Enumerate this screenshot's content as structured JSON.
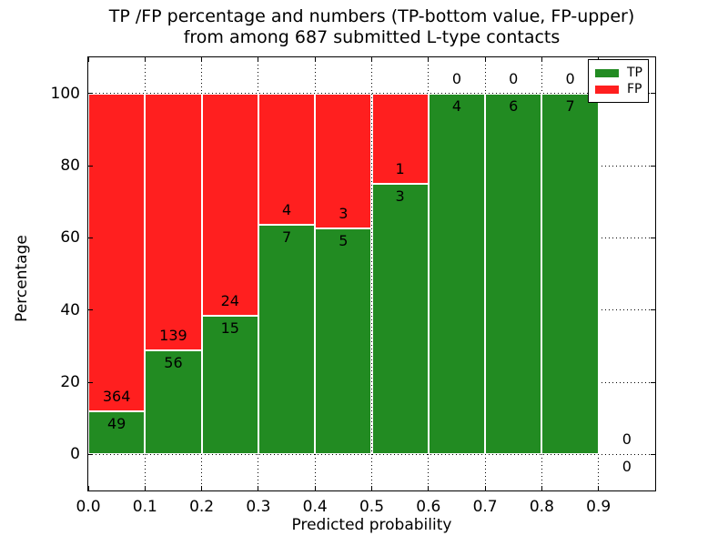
{
  "chart_data": {
    "type": "bar",
    "stacked_percentage": true,
    "title_line1": "TP /FP percentage and numbers (TP-bottom value, FP-upper)",
    "title_line2": "from among 687 submitted L-type contacts",
    "xlabel": "Predicted probability",
    "ylabel": "Percentage",
    "x_ticks": [
      "0.0",
      "0.1",
      "0.2",
      "0.3",
      "0.4",
      "0.5",
      "0.6",
      "0.7",
      "0.8",
      "0.9"
    ],
    "y_ticks": [
      "0",
      "20",
      "40",
      "60",
      "80",
      "100"
    ],
    "xlim": [
      0.0,
      1.0
    ],
    "ylim": [
      -10,
      110
    ],
    "grid_style": "dotted",
    "total_contacts": 687,
    "colors": {
      "tp": "#228b22",
      "fp": "#ff1f1f",
      "grid": "#000000",
      "text": "#000000",
      "background": "#ffffff",
      "bar_edge": "#ffffff"
    },
    "legend": {
      "position": "upper right",
      "entries": [
        {
          "label": "TP",
          "color": "#228b22"
        },
        {
          "label": "FP",
          "color": "#ff1f1f"
        }
      ]
    },
    "bins": [
      {
        "x0": 0.0,
        "x1": 0.1,
        "tp": 49,
        "fp": 364,
        "tp_pct": 11.86
      },
      {
        "x0": 0.1,
        "x1": 0.2,
        "tp": 56,
        "fp": 139,
        "tp_pct": 28.72
      },
      {
        "x0": 0.2,
        "x1": 0.3,
        "tp": 15,
        "fp": 24,
        "tp_pct": 38.46
      },
      {
        "x0": 0.3,
        "x1": 0.4,
        "tp": 7,
        "fp": 4,
        "tp_pct": 63.64
      },
      {
        "x0": 0.4,
        "x1": 0.5,
        "tp": 5,
        "fp": 3,
        "tp_pct": 62.5
      },
      {
        "x0": 0.5,
        "x1": 0.6,
        "tp": 3,
        "fp": 1,
        "tp_pct": 75.0
      },
      {
        "x0": 0.6,
        "x1": 0.7,
        "tp": 4,
        "fp": 0,
        "tp_pct": 100.0
      },
      {
        "x0": 0.7,
        "x1": 0.8,
        "tp": 6,
        "fp": 0,
        "tp_pct": 100.0
      },
      {
        "x0": 0.8,
        "x1": 0.9,
        "tp": 7,
        "fp": 0,
        "tp_pct": 100.0
      },
      {
        "x0": 0.9,
        "x1": 1.0,
        "tp": 0,
        "fp": 0,
        "tp_pct": null
      }
    ]
  }
}
